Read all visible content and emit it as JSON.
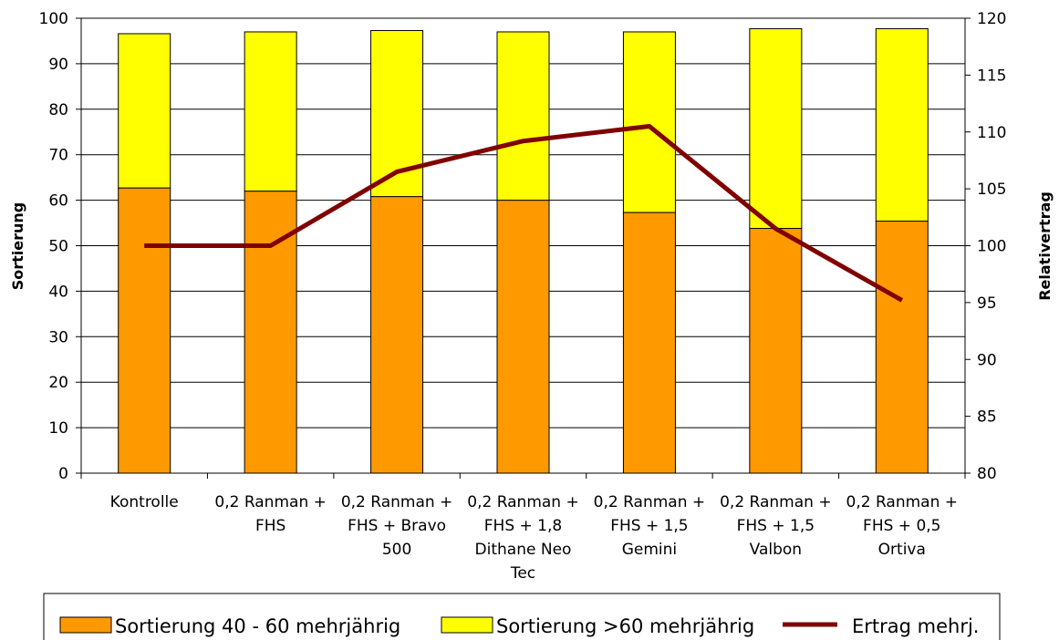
{
  "chart_data": {
    "type": "bar",
    "stacked": true,
    "categories": [
      [
        "Kontrolle"
      ],
      [
        "0,2 Ranman +",
        "FHS"
      ],
      [
        "0,2 Ranman +",
        "FHS + Bravo",
        "500"
      ],
      [
        "0,2 Ranman +",
        "FHS + 1,8",
        "Dithane Neo",
        "Tec"
      ],
      [
        "0,2 Ranman +",
        "FHS + 1,5",
        "Gemini"
      ],
      [
        "0,2 Ranman +",
        "FHS + 1,5",
        "Valbon"
      ],
      [
        "0,2 Ranman +",
        "FHS + 0,5",
        "Ortiva"
      ]
    ],
    "series": [
      {
        "name": "Sortierung 40 - 60 mehrjährig",
        "type": "bar",
        "axis": "left",
        "color": "#FF9900",
        "values": [
          62.7,
          62.0,
          60.8,
          60.0,
          57.3,
          53.8,
          55.4
        ]
      },
      {
        "name": "Sortierung >60 mehrjährig",
        "type": "bar",
        "axis": "left",
        "color": "#FFFF00",
        "values": [
          33.9,
          35.0,
          36.5,
          37.0,
          39.7,
          43.9,
          42.3
        ]
      },
      {
        "name": "Ertrag mehrj.",
        "type": "line",
        "axis": "right",
        "color": "#800000",
        "values": [
          100.0,
          100.0,
          106.5,
          109.2,
          110.5,
          101.5,
          95.2
        ]
      }
    ],
    "ylabel": "Sortierung",
    "y2label": "Relativertrag",
    "ylim": [
      0,
      100
    ],
    "y2lim": [
      80,
      120
    ],
    "yticks": [
      "0",
      "10",
      "20",
      "30",
      "40",
      "50",
      "60",
      "70",
      "80",
      "90",
      "100"
    ],
    "y2ticks": [
      "80",
      "85",
      "90",
      "95",
      "100",
      "105",
      "110",
      "115",
      "120"
    ],
    "grid": true,
    "legend_position": "bottom"
  }
}
